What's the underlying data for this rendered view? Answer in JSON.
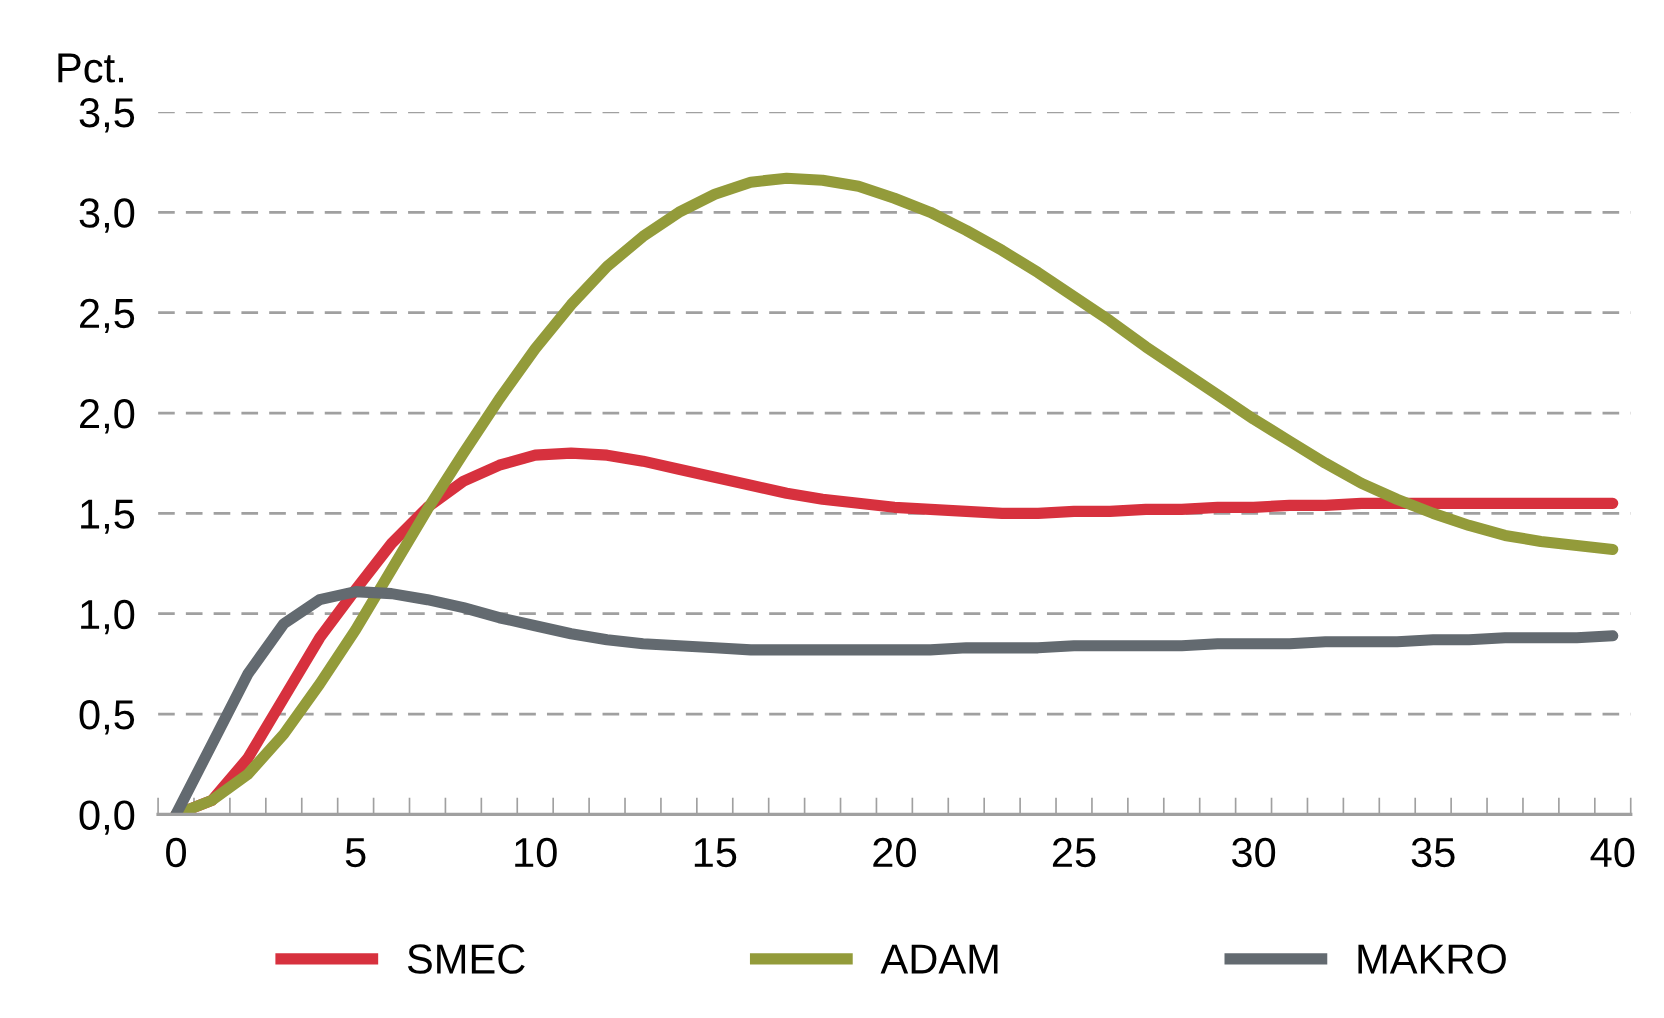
{
  "chart_data": {
    "type": "line",
    "ylabel": "Pct.",
    "x": [
      0,
      1,
      2,
      3,
      4,
      5,
      6,
      7,
      8,
      9,
      10,
      11,
      12,
      13,
      14,
      15,
      16,
      17,
      18,
      19,
      20,
      21,
      22,
      23,
      24,
      25,
      26,
      27,
      28,
      29,
      30,
      31,
      32,
      33,
      34,
      35,
      36,
      37,
      38,
      39,
      40
    ],
    "series": [
      {
        "name": "SMEC",
        "color": "#d7313e",
        "values": [
          0,
          0.07,
          0.28,
          0.58,
          0.88,
          1.12,
          1.35,
          1.53,
          1.66,
          1.74,
          1.79,
          1.8,
          1.79,
          1.76,
          1.72,
          1.68,
          1.64,
          1.6,
          1.57,
          1.55,
          1.53,
          1.52,
          1.51,
          1.5,
          1.5,
          1.51,
          1.51,
          1.52,
          1.52,
          1.53,
          1.53,
          1.54,
          1.54,
          1.55,
          1.55,
          1.55,
          1.55,
          1.55,
          1.55,
          1.55,
          1.55
        ]
      },
      {
        "name": "ADAM",
        "color": "#939b3a",
        "values": [
          0,
          0.07,
          0.2,
          0.4,
          0.65,
          0.92,
          1.22,
          1.52,
          1.8,
          2.07,
          2.32,
          2.54,
          2.73,
          2.88,
          3.0,
          3.09,
          3.15,
          3.17,
          3.16,
          3.13,
          3.07,
          3.0,
          2.91,
          2.81,
          2.7,
          2.58,
          2.46,
          2.33,
          2.21,
          2.09,
          1.97,
          1.86,
          1.75,
          1.65,
          1.57,
          1.5,
          1.44,
          1.39,
          1.36,
          1.34,
          1.32
        ]
      },
      {
        "name": "MAKRO",
        "color": "#636a70",
        "values": [
          0,
          0.35,
          0.7,
          0.95,
          1.07,
          1.11,
          1.1,
          1.07,
          1.03,
          0.98,
          0.94,
          0.9,
          0.87,
          0.85,
          0.84,
          0.83,
          0.82,
          0.82,
          0.82,
          0.82,
          0.82,
          0.82,
          0.83,
          0.83,
          0.83,
          0.84,
          0.84,
          0.84,
          0.84,
          0.85,
          0.85,
          0.85,
          0.86,
          0.86,
          0.86,
          0.87,
          0.87,
          0.88,
          0.88,
          0.88,
          0.89
        ]
      }
    ],
    "xlim": [
      -0.5,
      40.5
    ],
    "xticks": [
      0,
      5,
      10,
      15,
      20,
      25,
      30,
      35,
      40,
      {
        "value": -0.5,
        "label": null
      },
      {
        "value": 0.5,
        "label": null
      },
      {
        "value": 1.5,
        "label": null
      },
      {
        "value": 2.5,
        "label": null
      },
      {
        "value": 3.5,
        "label": null
      },
      {
        "value": 4.5,
        "label": null
      },
      {
        "value": 5.5,
        "label": null
      },
      {
        "value": 6.5,
        "label": null
      },
      {
        "value": 7.5,
        "label": null
      },
      {
        "value": 8.5,
        "label": null
      },
      {
        "value": 9.5,
        "label": null
      },
      {
        "value": 10.5,
        "label": null
      },
      {
        "value": 11.5,
        "label": null
      },
      {
        "value": 12.5,
        "label": null
      },
      {
        "value": 13.5,
        "label": null
      },
      {
        "value": 14.5,
        "label": null
      },
      {
        "value": 15.5,
        "label": null
      },
      {
        "value": 16.5,
        "label": null
      },
      {
        "value": 17.5,
        "label": null
      },
      {
        "value": 18.5,
        "label": null
      },
      {
        "value": 19.5,
        "label": null
      },
      {
        "value": 20.5,
        "label": null
      },
      {
        "value": 21.5,
        "label": null
      },
      {
        "value": 22.5,
        "label": null
      },
      {
        "value": 23.5,
        "label": null
      },
      {
        "value": 24.5,
        "label": null
      },
      {
        "value": 25.5,
        "label": null
      },
      {
        "value": 26.5,
        "label": null
      },
      {
        "value": 27.5,
        "label": null
      },
      {
        "value": 28.5,
        "label": null
      },
      {
        "value": 29.5,
        "label": null
      },
      {
        "value": 30.5,
        "label": null
      },
      {
        "value": 31.5,
        "label": null
      },
      {
        "value": 32.5,
        "label": null
      },
      {
        "value": 33.5,
        "label": null
      },
      {
        "value": 34.5,
        "label": null
      },
      {
        "value": 35.5,
        "label": null
      },
      {
        "value": 36.5,
        "label": null
      },
      {
        "value": 37.5,
        "label": null
      },
      {
        "value": 38.5,
        "label": null
      },
      {
        "value": 39.5,
        "label": null
      },
      {
        "value": 40.5,
        "label": null
      }
    ],
    "ylim": [
      0,
      3.5
    ],
    "yticks": [
      {
        "value": 0,
        "label": "0,0"
      },
      {
        "value": 0.5,
        "label": "0,5"
      },
      {
        "value": 1,
        "label": "1,0"
      },
      {
        "value": 1.5,
        "label": "1,5"
      },
      {
        "value": 2,
        "label": "2,0"
      },
      {
        "value": 2.5,
        "label": "2,5"
      },
      {
        "value": 3,
        "label": "3,0"
      },
      {
        "value": 3.5,
        "label": "3,5"
      }
    ],
    "grid": "y",
    "legend": "bottom",
    "marker": "none",
    "line_style": "solid"
  }
}
